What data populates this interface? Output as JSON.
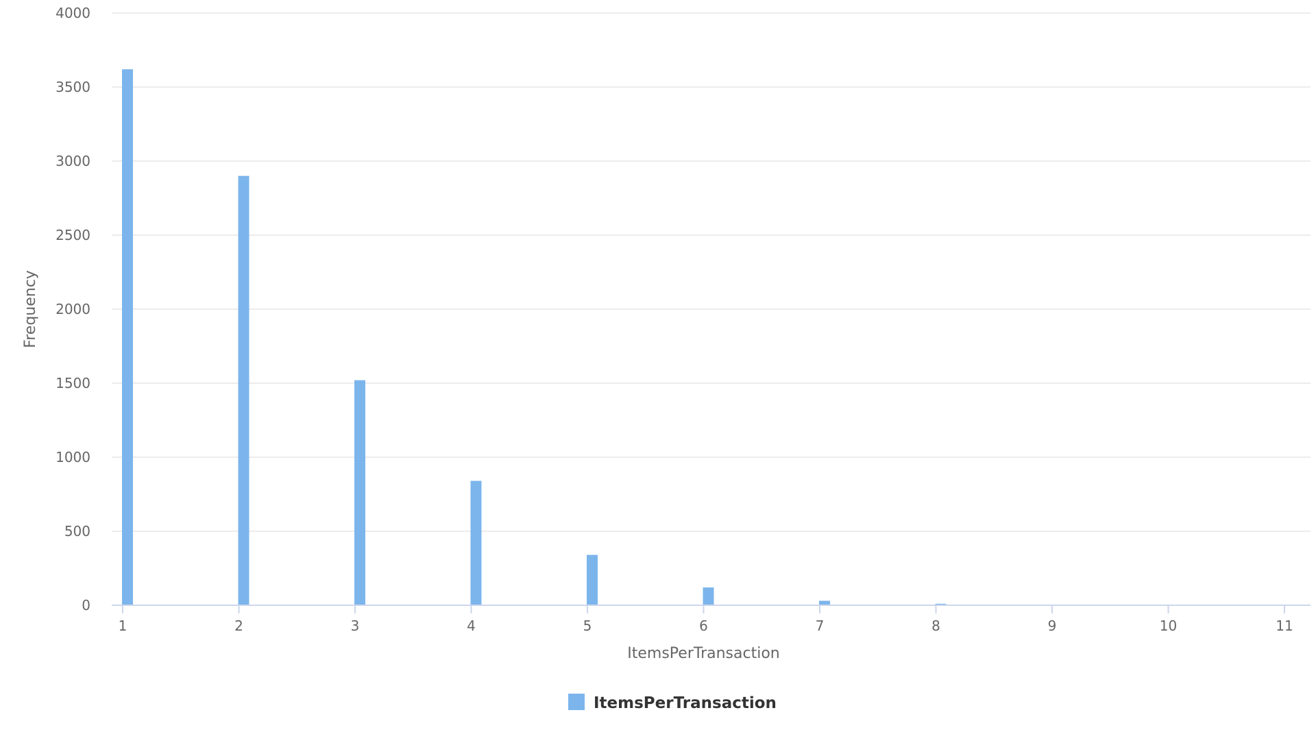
{
  "chart_data": {
    "type": "bar",
    "xlabel": "ItemsPerTransaction",
    "ylabel": "Frequency",
    "ylim": [
      0,
      4000
    ],
    "y_ticks": [
      0,
      500,
      1000,
      1500,
      2000,
      2500,
      3000,
      3500,
      4000
    ],
    "xlim": [
      1,
      11
    ],
    "x_ticks": [
      1,
      2,
      3,
      4,
      5,
      6,
      7,
      8,
      9,
      10,
      11
    ],
    "grid": true,
    "legend_position": "bottom-center",
    "series": [
      {
        "name": "ItemsPerTransaction",
        "color": "#7cb5ec",
        "x": [
          1,
          2,
          3,
          4,
          5,
          6,
          7,
          8
        ],
        "values": [
          3620,
          2900,
          1520,
          840,
          340,
          120,
          30,
          10
        ]
      }
    ]
  }
}
